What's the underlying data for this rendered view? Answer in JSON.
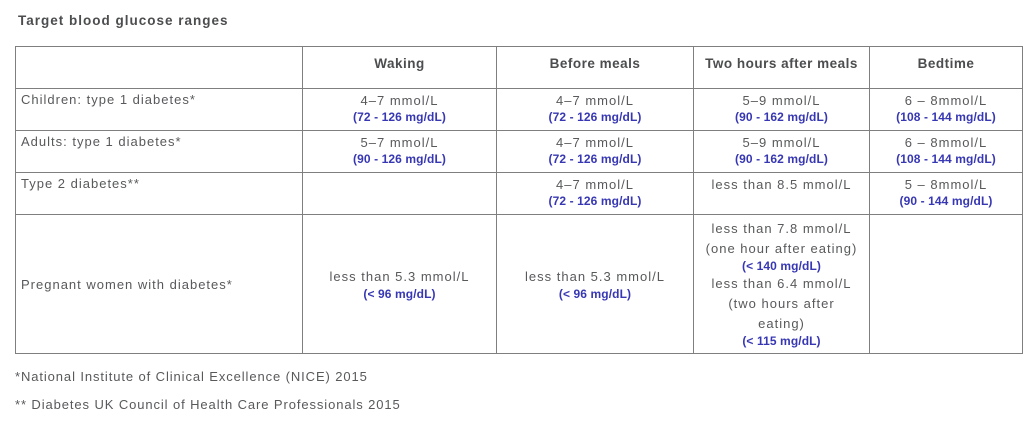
{
  "title": "Target blood glucose ranges",
  "colors": {
    "value_blue": "#3737b4",
    "text_gray": "#58595b",
    "header_gray": "#4c4d4f",
    "border_gray": "#7f7f7f"
  },
  "table": {
    "columns": [
      "",
      "Waking",
      "Before meals",
      "Two hours after meals",
      "Bedtime"
    ],
    "rows": [
      {
        "label": "Children: type 1 diabetes*",
        "tall": false,
        "cells": [
          {
            "lines": [
              {
                "t": "4–7 mmol/L",
                "style": "main"
              },
              {
                "t": "(72 - 126 mg/dL)",
                "style": "blue"
              }
            ]
          },
          {
            "lines": [
              {
                "t": "4–7 mmol/L",
                "style": "main"
              },
              {
                "t": "(72 - 126 mg/dL)",
                "style": "blue"
              }
            ]
          },
          {
            "lines": [
              {
                "t": "5–9 mmol/L",
                "style": "main"
              },
              {
                "t": "(90 - 162 mg/dL)",
                "style": "blue"
              }
            ]
          },
          {
            "lines": [
              {
                "t": "6 – 8mmol/L",
                "style": "main"
              },
              {
                "t": "(108 - 144 mg/dL)",
                "style": "blue"
              }
            ]
          }
        ]
      },
      {
        "label": "Adults: type 1 diabetes*",
        "tall": false,
        "cells": [
          {
            "lines": [
              {
                "t": "5–7 mmol/L",
                "style": "main"
              },
              {
                "t": "(90 - 126 mg/dL)",
                "style": "blue"
              }
            ]
          },
          {
            "lines": [
              {
                "t": "4–7 mmol/L",
                "style": "main"
              },
              {
                "t": "(72 - 126 mg/dL)",
                "style": "blue"
              }
            ]
          },
          {
            "lines": [
              {
                "t": "5–9 mmol/L",
                "style": "main"
              },
              {
                "t": "(90 - 162 mg/dL)",
                "style": "blue"
              }
            ]
          },
          {
            "lines": [
              {
                "t": "6 – 8mmol/L",
                "style": "main"
              },
              {
                "t": "(108 - 144 mg/dL)",
                "style": "blue"
              }
            ]
          }
        ]
      },
      {
        "label": "Type 2 diabetes**",
        "tall": false,
        "cells": [
          {
            "lines": []
          },
          {
            "lines": [
              {
                "t": "4–7 mmol/L",
                "style": "main"
              },
              {
                "t": "(72 - 126 mg/dL)",
                "style": "blue"
              }
            ]
          },
          {
            "lines": [
              {
                "t": "less than 8.5 mmol/L",
                "style": "main"
              }
            ]
          },
          {
            "lines": [
              {
                "t": "5 – 8mmol/L",
                "style": "main"
              },
              {
                "t": "(90 - 144 mg/dL)",
                "style": "blue"
              }
            ]
          }
        ]
      },
      {
        "label": "Pregnant women with diabetes*",
        "tall": true,
        "cells": [
          {
            "lines": [
              {
                "t": "less than 5.3 mmol/L",
                "style": "main"
              },
              {
                "t": "(< 96 mg/dL)",
                "style": "blue"
              }
            ]
          },
          {
            "lines": [
              {
                "t": "less than 5.3 mmol/L",
                "style": "main"
              },
              {
                "t": "(< 96 mg/dL)",
                "style": "blue"
              }
            ]
          },
          {
            "lines": [
              {
                "t": "less than 7.8 mmol/L",
                "style": "main"
              },
              {
                "t": "(one hour after eating)",
                "style": "main"
              },
              {
                "t": "(< 140 mg/dL)",
                "style": "blue"
              },
              {
                "t": "less than 6.4 mmol/L",
                "style": "main"
              },
              {
                "t": "(two hours  after",
                "style": "main"
              },
              {
                "t": "eating)",
                "style": "main"
              },
              {
                "t": "(< 115 mg/dL)",
                "style": "blue"
              }
            ]
          },
          {
            "lines": []
          }
        ]
      }
    ]
  },
  "footnotes": [
    "*National Institute of Clinical Excellence (NICE) 2015",
    "** Diabetes UK Council of Health Care Professionals 2015"
  ]
}
